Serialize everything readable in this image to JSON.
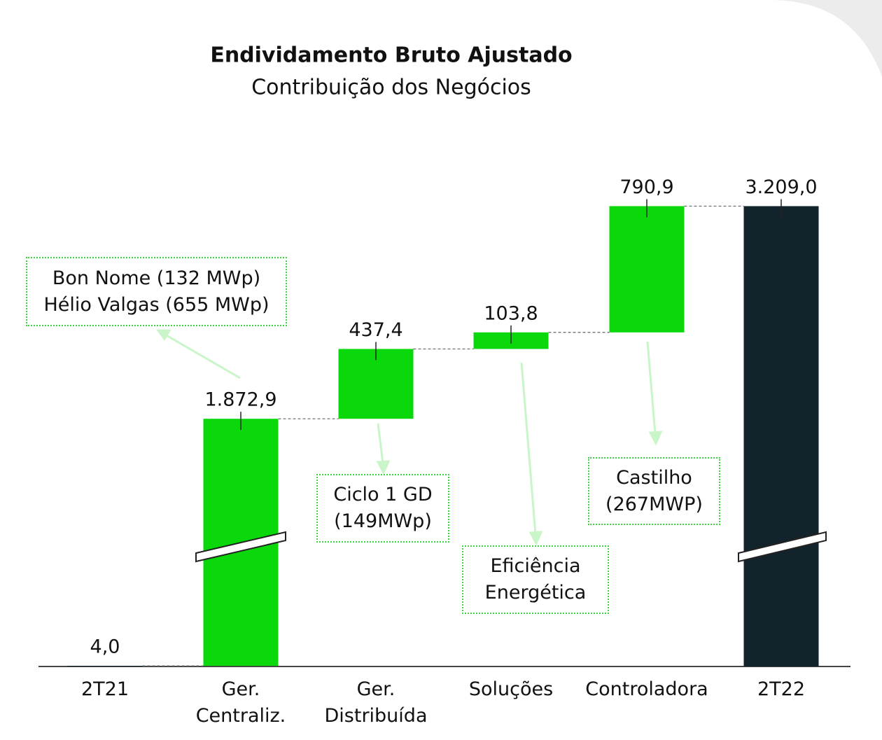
{
  "chart_data": {
    "type": "waterfall",
    "title": "Endividamento Bruto Ajustado",
    "subtitle": "Contribuição dos Negócios",
    "categories": [
      "2T21",
      "Ger.\nCentraliz.",
      "Ger.\nDistribuída",
      "Soluções",
      "Controladora",
      "2T22"
    ],
    "values": [
      4.0,
      1872.9,
      437.4,
      103.8,
      790.9,
      3209.0
    ],
    "value_labels": [
      "4,0",
      "1.872,9",
      "437,4",
      "103,8",
      "790,9",
      "3.209,0"
    ],
    "measures": [
      "absolute",
      "relative",
      "relative",
      "relative",
      "relative",
      "total"
    ],
    "colors": {
      "absolute": "#13232b",
      "relative": "#0ad80a",
      "total": "#13232b"
    },
    "annotations": [
      "Bon Nome (132 MWp)\nHélio Valgas (655 MWp)",
      "Ciclo 1 GD\n(149MWp)",
      "Eficiência\nEnergética",
      "Castilho\n(267MWP)"
    ]
  }
}
